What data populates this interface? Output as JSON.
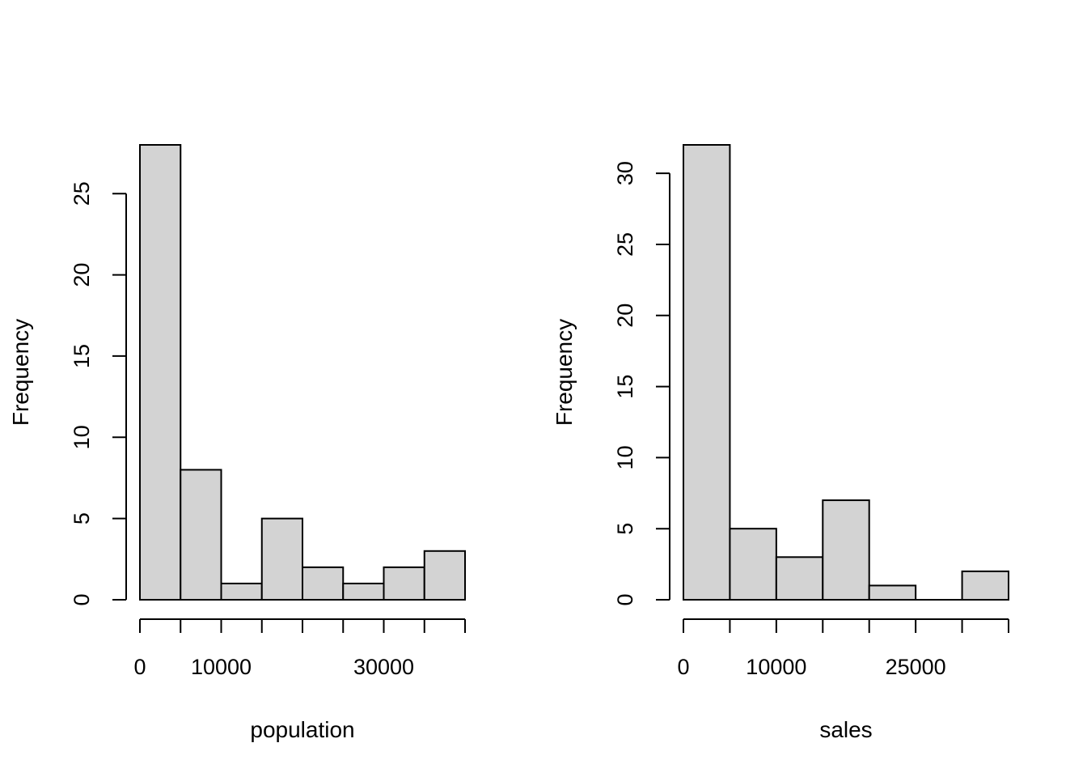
{
  "chart_data": [
    {
      "type": "bar",
      "histogram": true,
      "xlabel": "population",
      "ylabel": "Frequency",
      "bin_edges": [
        0,
        5000,
        10000,
        15000,
        20000,
        25000,
        30000,
        35000,
        40000
      ],
      "values": [
        28,
        8,
        1,
        5,
        2,
        1,
        2,
        3
      ],
      "x_ticks": [
        0,
        5000,
        10000,
        15000,
        20000,
        25000,
        30000,
        35000,
        40000
      ],
      "x_tick_labels": [
        "0",
        "",
        "10000",
        "",
        "",
        "",
        "30000",
        "",
        ""
      ],
      "y_ticks": [
        0,
        5,
        10,
        15,
        20,
        25
      ],
      "y_tick_labels": [
        "0",
        "5",
        "10",
        "15",
        "20",
        "25"
      ],
      "xlim": [
        0,
        40000
      ],
      "ylim": [
        0,
        28
      ],
      "bar_color": "#d3d3d3",
      "grid": false
    },
    {
      "type": "bar",
      "histogram": true,
      "xlabel": "sales",
      "ylabel": "Frequency",
      "bin_edges": [
        0,
        5000,
        10000,
        15000,
        20000,
        25000,
        30000,
        35000
      ],
      "values": [
        32,
        5,
        3,
        7,
        1,
        0,
        2
      ],
      "x_ticks": [
        0,
        5000,
        10000,
        15000,
        20000,
        25000,
        30000,
        35000
      ],
      "x_tick_labels": [
        "0",
        "",
        "10000",
        "",
        "",
        "25000",
        "",
        ""
      ],
      "y_ticks": [
        0,
        5,
        10,
        15,
        20,
        25,
        30
      ],
      "y_tick_labels": [
        "0",
        "5",
        "10",
        "15",
        "20",
        "25",
        "30"
      ],
      "xlim": [
        0,
        35000
      ],
      "ylim": [
        0,
        32
      ],
      "bar_color": "#d3d3d3",
      "grid": false
    }
  ]
}
